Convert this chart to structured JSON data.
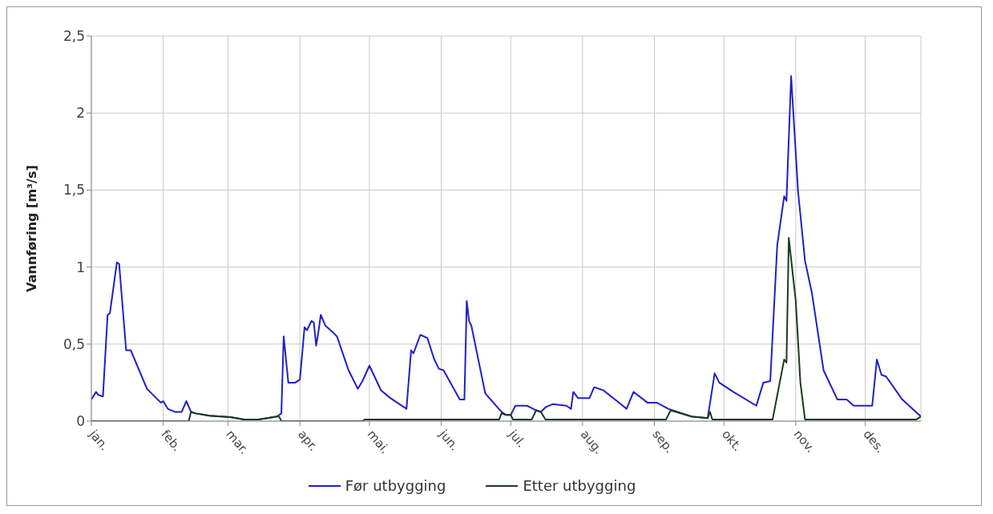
{
  "chart_data": {
    "type": "line",
    "ylabel": "Vannføring [m³/s]",
    "xlim": [
      "--01-01",
      "--12-25"
    ],
    "xticks": [
      {
        "value": "--01-01",
        "label": "jan."
      },
      {
        "value": "--02-01",
        "label": "feb."
      },
      {
        "value": "--03-01",
        "label": "mar."
      },
      {
        "value": "--04-01",
        "label": "apr."
      },
      {
        "value": "--05-01",
        "label": "mai."
      },
      {
        "value": "--06-01",
        "label": "jun."
      },
      {
        "value": "--07-01",
        "label": "jul."
      },
      {
        "value": "--08-01",
        "label": "aug."
      },
      {
        "value": "--09-01",
        "label": "sep."
      },
      {
        "value": "--10-01",
        "label": "okt."
      },
      {
        "value": "--11-01",
        "label": "nov."
      },
      {
        "value": "--12-01",
        "label": "des."
      }
    ],
    "ylim": [
      0,
      2.5
    ],
    "yticks": [
      0,
      {
        "value": 0.5,
        "label": "0,5"
      },
      1,
      {
        "value": 1.5,
        "label": "1,5"
      },
      2,
      {
        "value": 2.5,
        "label": "2,5"
      }
    ],
    "grid": true,
    "legend": "bottom",
    "marker": "none",
    "line_style": "solid",
    "series": [
      {
        "name": "Før utbygging",
        "color": "#2020c8",
        "x": [
          "--01-01",
          "--01-03",
          "--01-04",
          "--01-06",
          "--01-08",
          "--01-09",
          "--01-12",
          "--01-13",
          "--01-16",
          "--01-18",
          "--01-25",
          "--01-31",
          "--02-01",
          "--02-03",
          "--02-06",
          "--02-09",
          "--02-11",
          "--02-13",
          "--02-15",
          "--02-21",
          "--03-02",
          "--03-08",
          "--03-14",
          "--03-18",
          "--03-22",
          "--03-24",
          "--03-25",
          "--03-27",
          "--03-30",
          "--04-01",
          "--04-03",
          "--04-04",
          "--04-06",
          "--04-07",
          "--04-08",
          "--04-09",
          "--04-10",
          "--04-12",
          "--04-15",
          "--04-17",
          "--04-22",
          "--04-26",
          "--04-28",
          "--05-01",
          "--05-06",
          "--05-10",
          "--05-17",
          "--05-19",
          "--05-20",
          "--05-23",
          "--05-26",
          "--05-29",
          "--05-31",
          "--06-02",
          "--06-09",
          "--06-11",
          "--06-12",
          "--06-13",
          "--06-14",
          "--06-20",
          "--06-27",
          "--06-29",
          "--07-01",
          "--07-03",
          "--07-08",
          "--07-12",
          "--07-14",
          "--07-16",
          "--07-19",
          "--07-25",
          "--07-27",
          "--07-28",
          "--07-30",
          "--08-04",
          "--08-06",
          "--08-10",
          "--08-15",
          "--08-20",
          "--08-23",
          "--08-29",
          "--09-02",
          "--09-07",
          "--09-17",
          "--09-24",
          "--09-27",
          "--09-29",
          "--10-05",
          "--10-15",
          "--10-18",
          "--10-21",
          "--10-24",
          "--10-27",
          "--10-28",
          "--10-30",
          "--11-02",
          "--11-05",
          "--11-08",
          "--11-13",
          "--11-19",
          "--11-23",
          "--11-26",
          "--12-04",
          "--12-06",
          "--12-08",
          "--12-10",
          "--12-17",
          "--12-25"
        ],
        "values": [
          0.14,
          0.19,
          0.17,
          0.16,
          0.69,
          0.7,
          1.03,
          1.02,
          0.46,
          0.46,
          0.21,
          0.12,
          0.13,
          0.08,
          0.06,
          0.06,
          0.13,
          0.06,
          0.05,
          0.035,
          0.026,
          0.01,
          0.01,
          0.02,
          0.03,
          0.05,
          0.55,
          0.25,
          0.25,
          0.27,
          0.61,
          0.59,
          0.65,
          0.64,
          0.49,
          0.58,
          0.69,
          0.62,
          0.58,
          0.55,
          0.33,
          0.21,
          0.26,
          0.36,
          0.2,
          0.15,
          0.08,
          0.46,
          0.44,
          0.56,
          0.54,
          0.4,
          0.34,
          0.33,
          0.14,
          0.14,
          0.78,
          0.65,
          0.62,
          0.18,
          0.06,
          0.04,
          0.04,
          0.1,
          0.1,
          0.07,
          0.06,
          0.09,
          0.11,
          0.1,
          0.08,
          0.19,
          0.15,
          0.15,
          0.22,
          0.2,
          0.14,
          0.08,
          0.19,
          0.12,
          0.12,
          0.08,
          0.03,
          0.02,
          0.31,
          0.25,
          0.19,
          0.1,
          0.25,
          0.26,
          1.14,
          1.46,
          1.43,
          2.24,
          1.49,
          1.04,
          0.83,
          0.33,
          0.14,
          0.14,
          0.1,
          0.1,
          0.4,
          0.3,
          0.29,
          0.14,
          0.03
        ]
      },
      {
        "name": "Etter utbygging",
        "color": "#1c3a1c",
        "x": [
          "--01-01",
          "--02-12",
          "--02-13",
          "--02-15",
          "--02-21",
          "--03-02",
          "--03-08",
          "--03-14",
          "--03-18",
          "--03-22",
          "--03-23",
          "--03-24",
          "--04-28",
          "--04-29",
          "--06-26",
          "--06-27",
          "--06-29",
          "--07-01",
          "--07-02",
          "--07-10",
          "--07-12",
          "--07-14",
          "--07-16",
          "--09-06",
          "--09-08",
          "--09-17",
          "--09-24",
          "--09-25",
          "--09-26",
          "--10-22",
          "--10-27",
          "--10-28",
          "--10-29",
          "--11-01",
          "--11-03",
          "--11-05",
          "--12-23",
          "--12-25"
        ],
        "values": [
          0,
          0,
          0.06,
          0.05,
          0.035,
          0.026,
          0.01,
          0.01,
          0.02,
          0.03,
          0.03,
          0,
          0,
          0.01,
          0.01,
          0.05,
          0.04,
          0.04,
          0.01,
          0.01,
          0.07,
          0.06,
          0.01,
          0.01,
          0.07,
          0.03,
          0.02,
          0.06,
          0.01,
          0.01,
          0.4,
          0.38,
          1.19,
          0.78,
          0.25,
          0.01,
          0.01,
          0.03
        ]
      }
    ]
  }
}
